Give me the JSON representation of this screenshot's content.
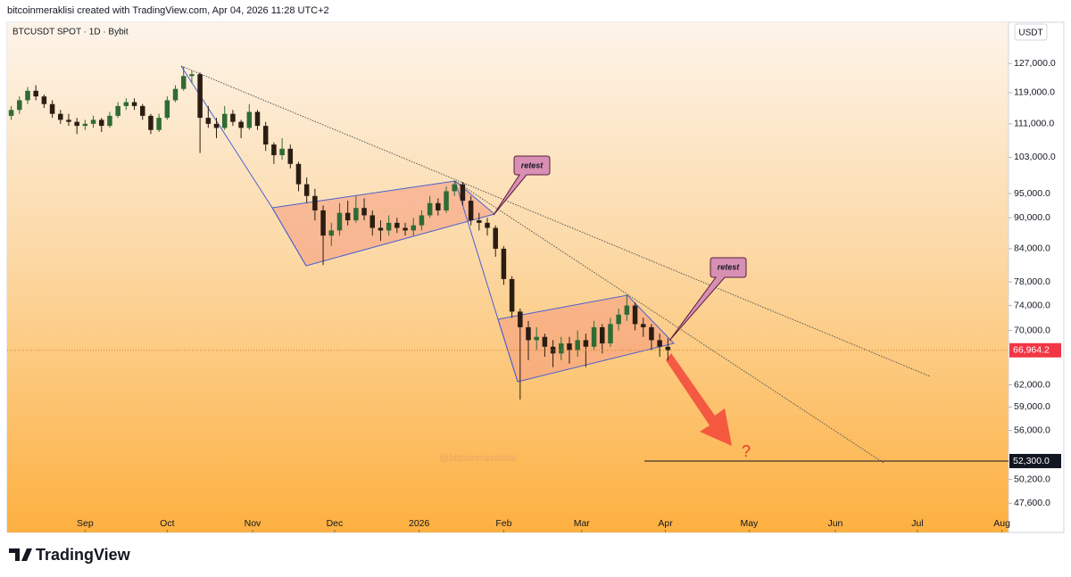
{
  "header": "bitcoinmeraklisi created with TradingView.com, Apr 04, 2026 11:28 UTC+2",
  "footer": "TradingView",
  "chart_data": {
    "type": "candlestick",
    "title": "BTCUSDT SPOT · 1D · Bybit",
    "currency": "USDT",
    "watermark": "@bitcoinmeraklisi",
    "annotations": [
      "retest",
      "retest",
      "?"
    ],
    "up_color": "#2f6b34",
    "down_color": "#2b1d12",
    "log_scale": true,
    "ylim": [
      44600,
      133800
    ],
    "yticks": [
      {
        "value": 127000,
        "label": "127,000.0"
      },
      {
        "value": 119000,
        "label": "119,000.0"
      },
      {
        "value": 111000,
        "label": "111,000.0"
      },
      {
        "value": 103000,
        "label": "103,000.0"
      },
      {
        "value": 95000,
        "label": "95,000.0"
      },
      {
        "value": 90000,
        "label": "90,000.0"
      },
      {
        "value": 84000,
        "label": "84,000.0"
      },
      {
        "value": 78000,
        "label": "78,000.0"
      },
      {
        "value": 74000,
        "label": "74,000.0"
      },
      {
        "value": 70000,
        "label": "70,000.0"
      },
      {
        "value": 62000,
        "label": "62,000.0"
      },
      {
        "value": 59000,
        "label": "59,000.0"
      },
      {
        "value": 56000,
        "label": "56,000.0"
      },
      {
        "value": 50200,
        "label": "50,200.0"
      },
      {
        "value": 47600,
        "label": "47,600.0"
      }
    ],
    "xlim": [
      0,
      122
    ],
    "xticks": [
      {
        "value": 9.5,
        "label": "Sep"
      },
      {
        "value": 19.5,
        "label": "Oct"
      },
      {
        "value": 29.9,
        "label": "Nov"
      },
      {
        "value": 39.9,
        "label": "Dec"
      },
      {
        "value": 50.2,
        "label": "2026"
      },
      {
        "value": 60.5,
        "label": "Feb"
      },
      {
        "value": 70.0,
        "label": "Mar"
      },
      {
        "value": 80.2,
        "label": "Apr"
      },
      {
        "value": 90.4,
        "label": "May"
      },
      {
        "value": 100.9,
        "label": "Jun"
      },
      {
        "value": 110.9,
        "label": "Jul"
      },
      {
        "value": 121.2,
        "label": "Aug"
      }
    ],
    "last_price": {
      "value": 66964.2,
      "label": "66,964.2"
    },
    "level": {
      "value": 52300,
      "label": "52,300.0"
    },
    "open": [
      113000,
      114500,
      117000,
      119500,
      118000,
      116000,
      113500,
      112000,
      111500,
      110500,
      111000,
      112000,
      110500,
      113000,
      115500,
      116500,
      115500,
      113000,
      109500,
      112500,
      117000,
      120000,
      123500,
      124000,
      112500,
      111000,
      110000,
      113500,
      111500,
      110000,
      114000,
      110500,
      106000,
      103500,
      105000,
      101500,
      97000,
      94500,
      91500,
      86500,
      87500,
      91000,
      89500,
      92000,
      90500,
      88000,
      87500,
      89000,
      88000,
      87500,
      88500,
      90500,
      93000,
      91500,
      95500,
      97000,
      93500,
      89500,
      89000,
      88000,
      84000,
      78500,
      73000,
      70500,
      68500,
      69000,
      67500,
      66500,
      68000,
      67000,
      68500,
      67500,
      70500,
      68000,
      71000,
      72500,
      74000,
      71000,
      70500,
      68500,
      67500
    ],
    "high": [
      115500,
      118000,
      120500,
      121000,
      118500,
      117000,
      114500,
      113500,
      112500,
      112000,
      113000,
      112500,
      114000,
      116500,
      117500,
      117500,
      116000,
      113500,
      113500,
      118000,
      121000,
      126200,
      125000,
      124500,
      115500,
      112500,
      115500,
      114500,
      112000,
      116000,
      114500,
      111500,
      106500,
      107500,
      106000,
      102000,
      98500,
      96000,
      92500,
      89000,
      93000,
      93500,
      94500,
      94000,
      91500,
      89500,
      90500,
      90000,
      89000,
      90000,
      91500,
      94500,
      94000,
      96500,
      97800,
      97500,
      94500,
      91000,
      90000,
      88500,
      84500,
      79000,
      73500,
      71500,
      70500,
      69500,
      68500,
      69000,
      69000,
      70000,
      69500,
      71500,
      71000,
      72000,
      73500,
      75800,
      74500,
      72000,
      71000,
      69500,
      68800
    ],
    "low": [
      112000,
      113500,
      116000,
      117000,
      115000,
      112500,
      111000,
      110500,
      108500,
      109500,
      110000,
      109000,
      110000,
      112500,
      114500,
      114500,
      112000,
      108500,
      109000,
      112000,
      116500,
      119500,
      121500,
      104000,
      110000,
      107500,
      109500,
      110500,
      107500,
      109500,
      109500,
      104500,
      101500,
      102500,
      100500,
      95500,
      93000,
      89500,
      81000,
      84500,
      86500,
      88500,
      89000,
      89500,
      86500,
      85500,
      86500,
      87000,
      86500,
      86500,
      87500,
      90000,
      90500,
      91000,
      94500,
      92500,
      88500,
      87500,
      86500,
      82500,
      77500,
      72000,
      60000,
      65500,
      67000,
      66000,
      64500,
      65500,
      65000,
      66000,
      64500,
      67000,
      66500,
      67500,
      70000,
      71500,
      70000,
      69000,
      67000,
      66000,
      65500
    ],
    "close": [
      114500,
      117000,
      119500,
      118000,
      116000,
      113500,
      112000,
      111500,
      110500,
      111000,
      112000,
      110500,
      113000,
      115500,
      116500,
      115500,
      113000,
      109500,
      112500,
      117000,
      120000,
      123500,
      124000,
      112500,
      111000,
      110000,
      113500,
      111500,
      110000,
      114000,
      110500,
      106000,
      103500,
      105000,
      101500,
      97000,
      94500,
      91500,
      86500,
      87500,
      91000,
      89500,
      92000,
      90500,
      88000,
      87500,
      89000,
      88000,
      87500,
      88500,
      90500,
      93000,
      91500,
      95500,
      97000,
      93500,
      89500,
      89000,
      88000,
      84000,
      78500,
      73000,
      70500,
      68500,
      69000,
      67500,
      66500,
      68000,
      67000,
      68500,
      67500,
      70500,
      68000,
      71000,
      72500,
      74000,
      71000,
      70500,
      68500,
      67500,
      66964.2
    ]
  }
}
